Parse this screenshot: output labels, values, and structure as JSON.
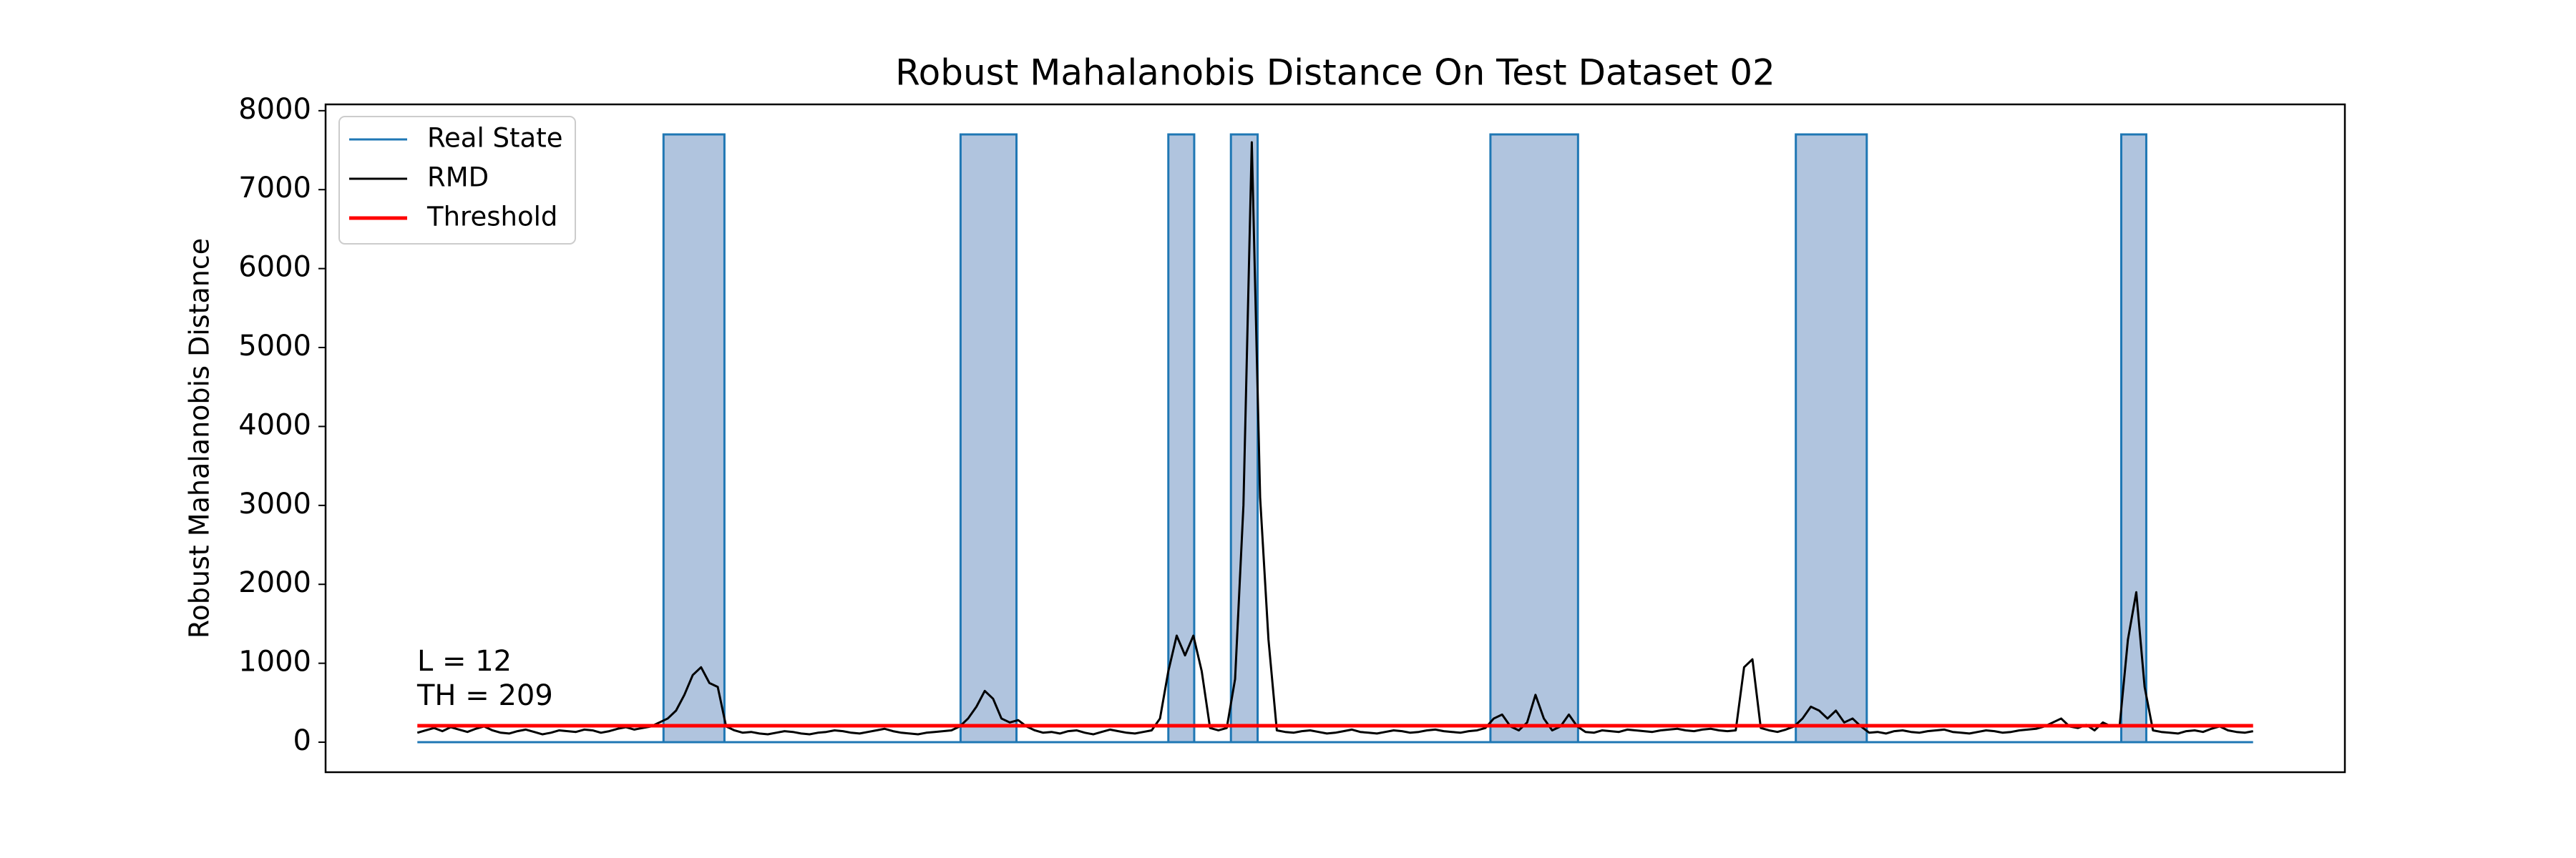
{
  "chart_data": {
    "type": "line",
    "title": "Robust Mahalanobis Distance On Test Dataset 02",
    "y_label": "Robust Mahalanobis Distance",
    "annotations": [
      "L = 12",
      "TH = 209"
    ],
    "legend": "upper left",
    "xlim": [
      -11,
      231
    ],
    "ylim": [
      -380,
      8080
    ],
    "yticks": [
      0,
      1000,
      2000,
      3000,
      4000,
      5000,
      6000,
      7000,
      8000
    ],
    "series": [
      {
        "name": "Real State",
        "color": "#1f77b4",
        "fill": "#b0c4de",
        "x": [
          0,
          29.5,
          29.5,
          36.8,
          36.8,
          65.1,
          65.1,
          71.8,
          71.8,
          90,
          90,
          93.1,
          93.1,
          97.5,
          97.5,
          100.7,
          100.7,
          128.6,
          128.6,
          139.1,
          139.1,
          165.2,
          165.2,
          173.7,
          173.7,
          204.2,
          204.2,
          207.2,
          207.2,
          220
        ],
        "values": [
          0,
          0,
          7700,
          7700,
          0,
          0,
          7700,
          7700,
          0,
          0,
          7700,
          7700,
          0,
          0,
          7700,
          7700,
          0,
          0,
          7700,
          7700,
          0,
          0,
          7700,
          7700,
          0,
          0,
          7700,
          7700,
          0,
          0
        ]
      },
      {
        "name": "RMD",
        "color": "#000000",
        "x": [
          0,
          1,
          2,
          3,
          4,
          5,
          6,
          7,
          8,
          9,
          10,
          11,
          12,
          13,
          14,
          15,
          16,
          17,
          18,
          19,
          20,
          21,
          22,
          23,
          24,
          25,
          26,
          27,
          28,
          29,
          30,
          31,
          32,
          33,
          34,
          35,
          36,
          37,
          38,
          39,
          40,
          41,
          42,
          43,
          44,
          45,
          46,
          47,
          48,
          49,
          50,
          51,
          52,
          53,
          54,
          55,
          56,
          57,
          58,
          59,
          60,
          61,
          62,
          63,
          64,
          65,
          66,
          67,
          68,
          69,
          70,
          71,
          72,
          73,
          74,
          75,
          76,
          77,
          78,
          79,
          80,
          81,
          82,
          83,
          84,
          85,
          86,
          87,
          88,
          89,
          90,
          91,
          92,
          93,
          94,
          95,
          96,
          97,
          98,
          99,
          100,
          101,
          102,
          103,
          104,
          105,
          106,
          107,
          108,
          109,
          110,
          111,
          112,
          113,
          114,
          115,
          116,
          117,
          118,
          119,
          120,
          121,
          122,
          123,
          124,
          125,
          126,
          127,
          128,
          129,
          130,
          131,
          132,
          133,
          134,
          135,
          136,
          137,
          138,
          139,
          140,
          141,
          142,
          143,
          144,
          145,
          146,
          147,
          148,
          149,
          150,
          151,
          152,
          153,
          154,
          155,
          156,
          157,
          158,
          159,
          160,
          161,
          162,
          163,
          164,
          165,
          166,
          167,
          168,
          169,
          170,
          171,
          172,
          173,
          174,
          175,
          176,
          177,
          178,
          179,
          180,
          181,
          182,
          183,
          184,
          185,
          186,
          187,
          188,
          189,
          190,
          191,
          192,
          193,
          194,
          195,
          196,
          197,
          198,
          199,
          200,
          201,
          202,
          203,
          204,
          205,
          206,
          207,
          208,
          209,
          210,
          211,
          212,
          213,
          214,
          215,
          216,
          217,
          218,
          219,
          220
        ],
        "values": [
          120,
          150,
          180,
          140,
          190,
          160,
          130,
          170,
          200,
          150,
          120,
          110,
          140,
          160,
          130,
          100,
          120,
          150,
          140,
          130,
          160,
          150,
          120,
          140,
          170,
          190,
          160,
          180,
          200,
          250,
          300,
          400,
          600,
          850,
          950,
          750,
          700,
          200,
          150,
          120,
          130,
          110,
          100,
          120,
          140,
          130,
          110,
          100,
          120,
          130,
          150,
          140,
          120,
          110,
          130,
          150,
          170,
          140,
          120,
          110,
          100,
          120,
          130,
          140,
          150,
          200,
          300,
          450,
          650,
          550,
          300,
          250,
          280,
          200,
          150,
          120,
          130,
          110,
          140,
          150,
          120,
          100,
          130,
          160,
          140,
          120,
          110,
          130,
          150,
          300,
          900,
          1350,
          1100,
          1350,
          900,
          180,
          150,
          180,
          800,
          3000,
          7600,
          3100,
          1300,
          150,
          130,
          120,
          140,
          150,
          130,
          110,
          120,
          140,
          160,
          130,
          120,
          110,
          130,
          150,
          140,
          120,
          130,
          150,
          160,
          140,
          130,
          120,
          140,
          150,
          180,
          300,
          350,
          200,
          150,
          250,
          600,
          300,
          150,
          200,
          350,
          200,
          130,
          120,
          150,
          140,
          130,
          160,
          150,
          140,
          130,
          150,
          160,
          170,
          150,
          140,
          160,
          170,
          150,
          140,
          150,
          950,
          1050,
          180,
          150,
          130,
          160,
          200,
          300,
          450,
          400,
          300,
          400,
          250,
          300,
          200,
          120,
          130,
          110,
          140,
          150,
          130,
          120,
          140,
          150,
          160,
          130,
          120,
          110,
          130,
          150,
          140,
          120,
          130,
          150,
          160,
          170,
          200,
          250,
          300,
          200,
          180,
          220,
          150,
          250,
          200,
          200,
          1300,
          1900,
          700,
          150,
          130,
          120,
          110,
          140,
          150,
          130,
          170,
          200,
          150,
          130,
          120,
          140
        ]
      },
      {
        "name": "Threshold",
        "color": "#ff0000",
        "x": [
          0,
          220
        ],
        "values": [
          209,
          209
        ]
      }
    ]
  }
}
